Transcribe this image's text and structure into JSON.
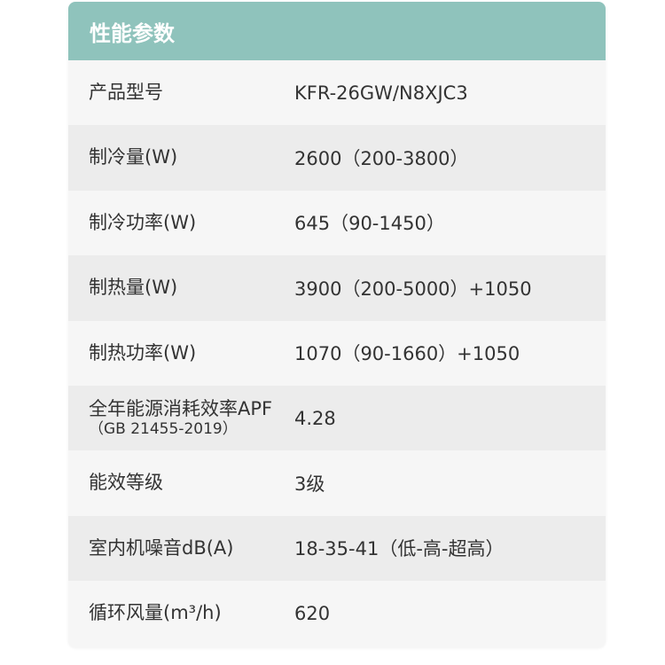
{
  "title": "性能参数",
  "rows": [
    {
      "label": "产品型号",
      "value": "KFR-26GW/N8XJC3"
    },
    {
      "label": "制冷量(W)",
      "value": "2600（200-3800）"
    },
    {
      "label": "制冷功率(W)",
      "value": "645（90-1450）"
    },
    {
      "label": "制热量(W)",
      "value": "3900（200-5000）+1050"
    },
    {
      "label": "制热功率(W)",
      "value": "1070（90-1660）+1050"
    },
    {
      "label": "全年能源消耗效率APF",
      "sublabel": "（GB 21455-2019）",
      "value": "4.28"
    },
    {
      "label": "能效等级",
      "value": "3级"
    },
    {
      "label": "室内机噪音dB(A)",
      "value": "18-35-41（低-高-超高）"
    },
    {
      "label": "循环风量(m³/h)",
      "value": "620"
    }
  ]
}
